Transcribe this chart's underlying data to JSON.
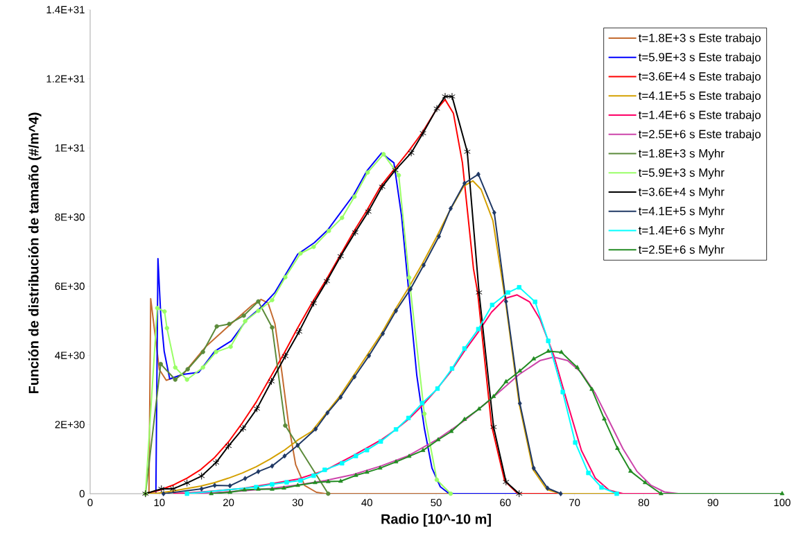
{
  "chart_data": {
    "type": "line",
    "xlabel": "Radio [10^-10 m]",
    "ylabel": "Función de distribución de tamaño (#/m^4)",
    "xlim": [
      0,
      100
    ],
    "xticks": [
      0,
      10,
      20,
      30,
      40,
      50,
      60,
      70,
      80,
      90,
      100
    ],
    "ylim": [
      0,
      1.4e+31
    ],
    "yticks": [
      {
        "value": 0,
        "label": "0"
      },
      {
        "value": 2e+30,
        "label": "2E+30"
      },
      {
        "value": 4e+30,
        "label": "4E+30"
      },
      {
        "value": 6e+30,
        "label": "6E+30"
      },
      {
        "value": 8e+30,
        "label": "8E+30"
      },
      {
        "value": 1e+31,
        "label": "1E+31"
      },
      {
        "value": 1.2e+31,
        "label": "1.2E+31"
      },
      {
        "value": 1.4e+31,
        "label": "1.4E+31"
      }
    ],
    "legend": "top right",
    "grid": false,
    "series": [
      {
        "name": "t=1.8E+3 s Este trabajo",
        "color": "#c46b30",
        "marker": "none",
        "x": [
          8.5,
          8.75,
          10,
          11,
          13.4,
          16.7,
          20,
          23.4,
          24.7,
          25.7,
          26.7,
          27.7,
          28.7,
          29.7,
          31,
          32.7,
          34,
          100
        ],
        "values": [
          0,
          5.64e+30,
          3.59e+30,
          3.28e+30,
          3.45e+30,
          4.25e+30,
          4.85e+30,
          5.45e+30,
          5.62e+30,
          5.52e+30,
          4.92e+30,
          3.52e+30,
          1.98e+30,
          8.4e+29,
          2.4e+29,
          4e+28,
          0,
          0
        ]
      },
      {
        "name": "t=5.9E+3 s Este trabajo",
        "color": "#0000ff",
        "marker": "none",
        "x": [
          9.5,
          9.8,
          10.2,
          10.7,
          11.5,
          13.4,
          15.7,
          18,
          20.4,
          22.7,
          24.7,
          26.7,
          30,
          32.4,
          34.3,
          38.1,
          40,
          42.1,
          43.9,
          45,
          46.1,
          47.2,
          48.3,
          49.4,
          50.6,
          51.7,
          52.5,
          100
        ],
        "values": [
          0,
          6.8e+30,
          5.19e+30,
          4.12e+30,
          3.32e+30,
          3.45e+30,
          3.51e+30,
          4.12e+30,
          4.42e+30,
          5.05e+30,
          5.39e+30,
          5.82e+30,
          6.93e+30,
          7.26e+30,
          7.62e+30,
          8.65e+30,
          9.34e+30,
          9.85e+30,
          9.57e+30,
          8.04e+30,
          5.73e+30,
          3.43e+30,
          1.89e+30,
          7.4e+29,
          2e+29,
          3e+28,
          0,
          0
        ]
      },
      {
        "name": "t=3.6E+4 s Este trabajo",
        "color": "#ff0000",
        "marker": "none",
        "x": [
          8,
          10,
          12,
          14,
          16,
          18,
          20,
          22,
          24,
          26,
          28,
          30,
          32,
          34,
          36,
          38,
          40,
          42,
          44,
          46,
          48,
          50,
          51.3,
          52.5,
          53.8,
          55.4,
          56,
          58,
          59.9,
          61.8,
          100
        ],
        "values": [
          0,
          1e+29,
          2.5e+29,
          4.5e+29,
          7e+29,
          1.05e+30,
          1.5e+30,
          2.05e+30,
          2.65e+30,
          3.35e+30,
          4.05e+30,
          4.8e+30,
          5.5e+30,
          6.15e+30,
          6.85e+30,
          7.55e+30,
          8.2e+30,
          8.9e+30,
          9.4e+30,
          9.9e+30,
          1.045e+31,
          1.11e+31,
          1.14e+31,
          1.1e+31,
          9.57e+30,
          6.5e+30,
          5.82e+30,
          1.98e+30,
          3.7e+29,
          0,
          0
        ]
      },
      {
        "name": "t=4.1E+5 s Este trabajo",
        "color": "#d4a000",
        "marker": "none",
        "x": [
          8,
          10,
          12,
          14,
          16,
          18,
          20,
          22,
          24,
          26,
          28,
          30,
          32,
          34,
          36,
          38,
          40,
          42,
          44,
          46,
          48,
          50,
          52,
          54,
          55.3,
          56.5,
          58.2,
          60,
          62,
          64,
          66,
          68,
          100
        ],
        "values": [
          0,
          2e+28,
          8e+28,
          1.5e+29,
          2.2e+29,
          3.2e+29,
          4.5e+29,
          6e+29,
          7.8e+29,
          1e+30,
          1.25e+30,
          1.55e+30,
          1.8e+30,
          2.3e+30,
          2.8e+30,
          3.4e+30,
          4e+30,
          4.6e+30,
          5.3e+30,
          5.95e+30,
          6.65e+30,
          7.4e+30,
          8.2e+30,
          8.9e+30,
          9.05e+30,
          8.8e+30,
          7.9e+30,
          5.6e+30,
          2.6e+30,
          7e+29,
          1.2e+29,
          0,
          0
        ]
      },
      {
        "name": "t=1.4E+6 s Este trabajo",
        "color": "#ff0066",
        "marker": "none",
        "x": [
          12,
          14,
          18,
          22,
          26,
          30,
          34,
          38,
          42,
          44,
          46,
          48,
          50,
          52,
          54,
          56,
          58,
          60,
          61.7,
          63.5,
          65,
          67,
          69,
          71,
          73,
          75,
          77,
          100
        ],
        "values": [
          0,
          2e+28,
          8e+28,
          1.5e+29,
          2.8e+29,
          4.2e+29,
          6.8e+29,
          1.1e+30,
          1.55e+30,
          1.83e+30,
          2.15e+30,
          2.55e+30,
          3e+30,
          3.5e+30,
          4.1e+30,
          4.65e+30,
          5.25e+30,
          5.65e+30,
          5.75e+30,
          5.55e+30,
          5.05e+30,
          4e+30,
          2.6e+30,
          1.25e+30,
          4.5e+29,
          1e+29,
          0,
          0
        ]
      },
      {
        "name": "t=2.5E+6 s Este trabajo",
        "color": "#cc44aa",
        "marker": "none",
        "x": [
          14,
          18,
          22,
          26,
          30,
          34,
          38,
          42,
          46,
          50,
          54,
          58,
          62,
          65,
          67,
          69,
          71,
          73,
          75,
          77,
          79,
          81,
          83,
          85,
          100
        ],
        "values": [
          0,
          3e+28,
          8e+28,
          1.5e+29,
          2.5e+29,
          3.8e+29,
          5.5e+29,
          8e+29,
          1.1e+30,
          1.55e+30,
          2.1e+30,
          2.75e+30,
          3.45e+30,
          3.85e+30,
          3.95e+30,
          3.85e+30,
          3.5e+30,
          2.9e+30,
          2.1e+30,
          1.3e+30,
          6.5e+29,
          2.5e+29,
          5e+28,
          0,
          0
        ]
      },
      {
        "name": "t=1.8E+3 s Myhr",
        "color": "#5b8a3a",
        "marker": "circle",
        "x": [
          8,
          10.2,
          12.3,
          14.1,
          16.3,
          18.3,
          20.1,
          22.2,
          24.3,
          26.3,
          28.2,
          34.4
        ],
        "values": [
          0,
          3.75e+30,
          3.3e+30,
          3.6e+30,
          4.1e+30,
          4.84e+30,
          4.91e+30,
          5.15e+30,
          5.56e+30,
          4.81e+30,
          1.97e+30,
          0
        ]
      },
      {
        "name": "t=5.9E+3 s Myhr",
        "color": "#99ff66",
        "marker": "circle",
        "x": [
          8,
          9.7,
          10.75,
          11.1,
          12.3,
          14,
          16.3,
          18.2,
          20.3,
          22.4,
          24.3,
          26.3,
          28.2,
          30.4,
          32.3,
          34.5,
          36.4,
          38.2,
          40.1,
          42.4,
          44.6,
          46.1,
          48.3,
          50.1,
          52.1
        ],
        "values": [
          0,
          5.37e+30,
          5.27e+30,
          4.79e+30,
          3.65e+30,
          3.3e+30,
          3.65e+30,
          4.1e+30,
          4.25e+30,
          4.99e+30,
          5.29e+30,
          5.6e+30,
          6.26e+30,
          6.95e+30,
          7.14e+30,
          7.6e+30,
          7.98e+30,
          8.59e+30,
          9.29e+30,
          9.82e+30,
          9.21e+30,
          6.25e+30,
          2.31e+30,
          4e+29,
          0
        ]
      },
      {
        "name": "t=3.6E+4 s Myhr",
        "color": "#000000",
        "marker": "cross",
        "x": [
          8,
          10.3,
          12,
          14,
          16.1,
          18.2,
          20,
          22.1,
          24.1,
          26.2,
          28.2,
          30.2,
          32.3,
          34.2,
          36.2,
          38.3,
          40.2,
          42.2,
          44.1,
          46.4,
          48.1,
          50.1,
          51.3,
          52.3,
          54.5,
          56.2,
          58.3,
          60.1,
          62
        ],
        "values": [
          0,
          1.4e+29,
          1.4e+29,
          3.1e+29,
          5.1e+29,
          9e+29,
          1.38e+30,
          1.89e+30,
          2.46e+30,
          3.25e+30,
          3.98e+30,
          4.69e+30,
          5.51e+30,
          6.15e+30,
          6.87e+30,
          7.56e+30,
          8.16e+30,
          8.88e+30,
          9.36e+30,
          9.86e+30,
          1.043e+31,
          1.114e+31,
          1.149e+31,
          1.149e+31,
          9.89e+30,
          5.82e+30,
          1.93e+30,
          3.4e+29,
          0
        ]
      },
      {
        "name": "t=4.1E+5 s Myhr",
        "color": "#1f3864",
        "marker": "diamond",
        "x": [
          10.6,
          16.1,
          18,
          20.2,
          22.4,
          24.3,
          26.3,
          28.1,
          30,
          32.6,
          34.3,
          36.2,
          38.2,
          40.3,
          42.3,
          44.2,
          46.3,
          48.2,
          50.4,
          52.1,
          54.1,
          56.1,
          58.4,
          60.1,
          62.1,
          64.1,
          66.1,
          68
        ],
        "values": [
          0,
          1.4e+29,
          2.4e+29,
          2.3e+29,
          4.4e+29,
          6.4e+29,
          8e+29,
          1.09e+30,
          1.4e+30,
          1.87e+30,
          2.34e+30,
          2.79e+30,
          3.38e+30,
          3.99e+30,
          4.63e+30,
          5.29e+30,
          5.92e+30,
          6.61e+30,
          7.44e+30,
          8.25e+30,
          8.98e+30,
          9.24e+30,
          8.13e+30,
          5.56e+30,
          2.61e+30,
          7.4e+29,
          1.6e+29,
          0
        ]
      },
      {
        "name": "t=1.4E+6 s Myhr",
        "color": "#00ffff",
        "marker": "square",
        "x": [
          14,
          24,
          26.3,
          28.4,
          30.4,
          32.3,
          33.9,
          36.4,
          38.4,
          40,
          42,
          44.2,
          46,
          48,
          50.2,
          52.3,
          54.1,
          56.1,
          58.1,
          60.4,
          62,
          64.3,
          66.2,
          68.3,
          70.1,
          72,
          73.9,
          76.1
        ],
        "values": [
          0,
          1.9e+29,
          2.7e+29,
          3.3e+29,
          3.8e+29,
          5.2e+29,
          6.9e+29,
          8.8e+29,
          1.09e+30,
          1.26e+30,
          1.51e+30,
          1.86e+30,
          2.19e+30,
          2.62e+30,
          3.04e+30,
          3.62e+30,
          4.2e+30,
          4.76e+30,
          5.46e+30,
          5.82e+30,
          5.97e+30,
          5.55e+30,
          4.42e+30,
          2.94e+30,
          1.48e+30,
          6e+29,
          1.8e+29,
          0
        ]
      },
      {
        "name": "t=2.5E+6 s Myhr",
        "color": "#228b22",
        "marker": "triangle",
        "x": [
          17.5,
          20.2,
          22.3,
          24.3,
          26.3,
          28,
          30,
          32.5,
          34.4,
          36.2,
          38.4,
          40,
          41.9,
          44.2,
          46.1,
          48.1,
          50.3,
          52.2,
          54.1,
          56.2,
          58.3,
          60.1,
          62.1,
          64.1,
          66.2,
          68.1,
          70.4,
          72.5,
          74.3,
          76.2,
          78.1,
          80.2,
          82.5,
          100
        ],
        "values": [
          0,
          4e+28,
          1.1e+29,
          1.3e+29,
          1.3e+29,
          1.6e+29,
          2.4e+29,
          3.2e+29,
          3.5e+29,
          3.6e+29,
          5.3e+29,
          6.2e+29,
          7.4e+29,
          9.2e+29,
          1.08e+30,
          1.25e+30,
          1.56e+30,
          1.8e+30,
          2.15e+30,
          2.45e+30,
          2.81e+30,
          3.24e+30,
          3.55e+30,
          3.9e+30,
          4.12e+30,
          4.09e+30,
          3.65e+30,
          3.02e+30,
          2.16e+30,
          1.31e+30,
          6.5e+29,
          3.2e+29,
          0,
          0
        ]
      }
    ]
  }
}
